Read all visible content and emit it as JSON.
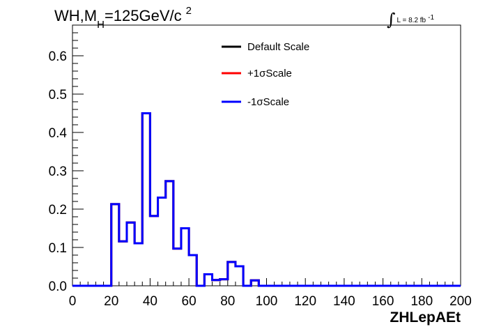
{
  "chart_data": {
    "type": "line",
    "title": {
      "prefix": "WH,M",
      "subscript": "H",
      "suffix": "=125GeV/c",
      "superscript": "2"
    },
    "luminosity": {
      "symbol": "∫",
      "text": "L = 8.2 fb",
      "superscript": "-1"
    },
    "xlabel": "ZHLepAEt",
    "ylabel": "",
    "xlim": [
      0,
      200
    ],
    "ylim": [
      0,
      0.68
    ],
    "x_ticks": [
      0,
      20,
      40,
      60,
      80,
      100,
      120,
      140,
      160,
      180,
      200
    ],
    "x_tick_labels": [
      "0",
      "20",
      "40",
      "60",
      "80",
      "100",
      "120",
      "140",
      "160",
      "180",
      "200"
    ],
    "y_ticks": [
      0,
      0.1,
      0.2,
      0.3,
      0.4,
      0.5,
      0.6
    ],
    "y_tick_labels": [
      "0.0",
      "0.1",
      "0.2",
      "0.3",
      "0.4",
      "0.5",
      "0.6"
    ],
    "grid": false,
    "legend_position": "top-center",
    "bin_edges": [
      0,
      4,
      8,
      12,
      16,
      20,
      24,
      28,
      32,
      36,
      40,
      44,
      48,
      52,
      56,
      60,
      64,
      68,
      72,
      76,
      80,
      84,
      88,
      92,
      96,
      100,
      104,
      108,
      112,
      116,
      120,
      124,
      128,
      132,
      136,
      140,
      144,
      148,
      152,
      156,
      160,
      164,
      168,
      172,
      176,
      180,
      184,
      188,
      192,
      196,
      200
    ],
    "series": [
      {
        "name": "Default Scale",
        "color": "#000000",
        "values": [
          0,
          0,
          0,
          0,
          0,
          0.213,
          0.116,
          0.165,
          0.111,
          0.45,
          0.182,
          0.23,
          0.273,
          0.097,
          0.15,
          0.08,
          0,
          0.03,
          0.015,
          0.017,
          0.062,
          0.051,
          0,
          0.014,
          0,
          0,
          0,
          0,
          0,
          0,
          0,
          0,
          0,
          0,
          0,
          0,
          0,
          0,
          0,
          0,
          0,
          0,
          0,
          0,
          0,
          0,
          0,
          0,
          0,
          0
        ]
      },
      {
        "name": "+1σScale",
        "color": "#ff0000",
        "values": [
          0,
          0,
          0,
          0,
          0,
          0.213,
          0.116,
          0.165,
          0.111,
          0.45,
          0.182,
          0.23,
          0.273,
          0.097,
          0.15,
          0.08,
          0,
          0.03,
          0.015,
          0.017,
          0.062,
          0.051,
          0,
          0.014,
          0,
          0,
          0,
          0,
          0,
          0,
          0,
          0,
          0,
          0,
          0,
          0,
          0,
          0,
          0,
          0,
          0,
          0,
          0,
          0,
          0,
          0,
          0,
          0,
          0,
          0
        ]
      },
      {
        "name": "-1σScale",
        "color": "#0000ff",
        "values": [
          0,
          0,
          0,
          0,
          0,
          0.213,
          0.116,
          0.165,
          0.111,
          0.45,
          0.182,
          0.23,
          0.273,
          0.097,
          0.15,
          0.08,
          0,
          0.03,
          0.015,
          0.017,
          0.062,
          0.051,
          0,
          0.014,
          0,
          0,
          0,
          0,
          0,
          0,
          0,
          0,
          0,
          0,
          0,
          0,
          0,
          0,
          0,
          0,
          0,
          0,
          0,
          0,
          0,
          0,
          0,
          0,
          0,
          0
        ]
      }
    ]
  }
}
